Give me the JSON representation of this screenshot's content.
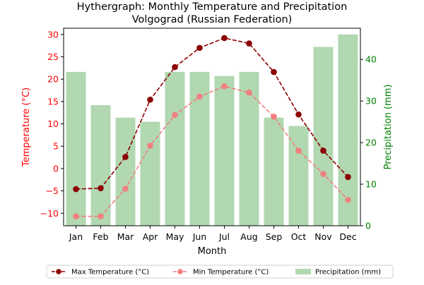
{
  "chart_data": {
    "type": "bar+line",
    "title": "Hythergraph: Monthly Temperature and Precipitation",
    "subtitle": "Volgograd (Russian Federation)",
    "xlabel": "Month",
    "ylabel_left": "Temperature (°C)",
    "ylabel_right": "Precipitation (mm)",
    "categories": [
      "Jan",
      "Feb",
      "Mar",
      "Apr",
      "May",
      "Jun",
      "Jul",
      "Aug",
      "Sep",
      "Oct",
      "Nov",
      "Dec"
    ],
    "ylim_left": [
      -12.8,
      31.4
    ],
    "yticks_left": [
      -10,
      -5,
      0,
      5,
      10,
      15,
      20,
      25,
      30
    ],
    "ylim_right": [
      0,
      47.5
    ],
    "yticks_right": [
      0,
      10,
      20,
      30,
      40
    ],
    "grid": false,
    "legend_position": "bottom-center",
    "series": [
      {
        "name": "Max Temperature (°C)",
        "axis": "left",
        "kind": "line",
        "style": "dashed",
        "marker": "circle",
        "color": "#8b0000",
        "values": [
          -4.6,
          -4.4,
          2.6,
          15.4,
          22.7,
          27.0,
          29.2,
          28.0,
          21.6,
          12.1,
          4.0,
          -1.9
        ]
      },
      {
        "name": "Min Temperature (°C)",
        "axis": "left",
        "kind": "line",
        "style": "dashed",
        "marker": "circle",
        "color": "#f08080",
        "values": [
          -10.7,
          -10.7,
          -4.5,
          5.1,
          12.0,
          16.1,
          18.4,
          17.0,
          11.6,
          4.0,
          -1.2,
          -7.0
        ]
      },
      {
        "name": "Precipitation (mm)",
        "axis": "right",
        "kind": "bar",
        "color": "#b1d8b1",
        "values": [
          37,
          29,
          26,
          25,
          37,
          37,
          36,
          37,
          26,
          24,
          43,
          46
        ]
      }
    ]
  },
  "colors": {
    "temperature_axis": "#ff0000",
    "precipitation_axis": "#008000"
  }
}
